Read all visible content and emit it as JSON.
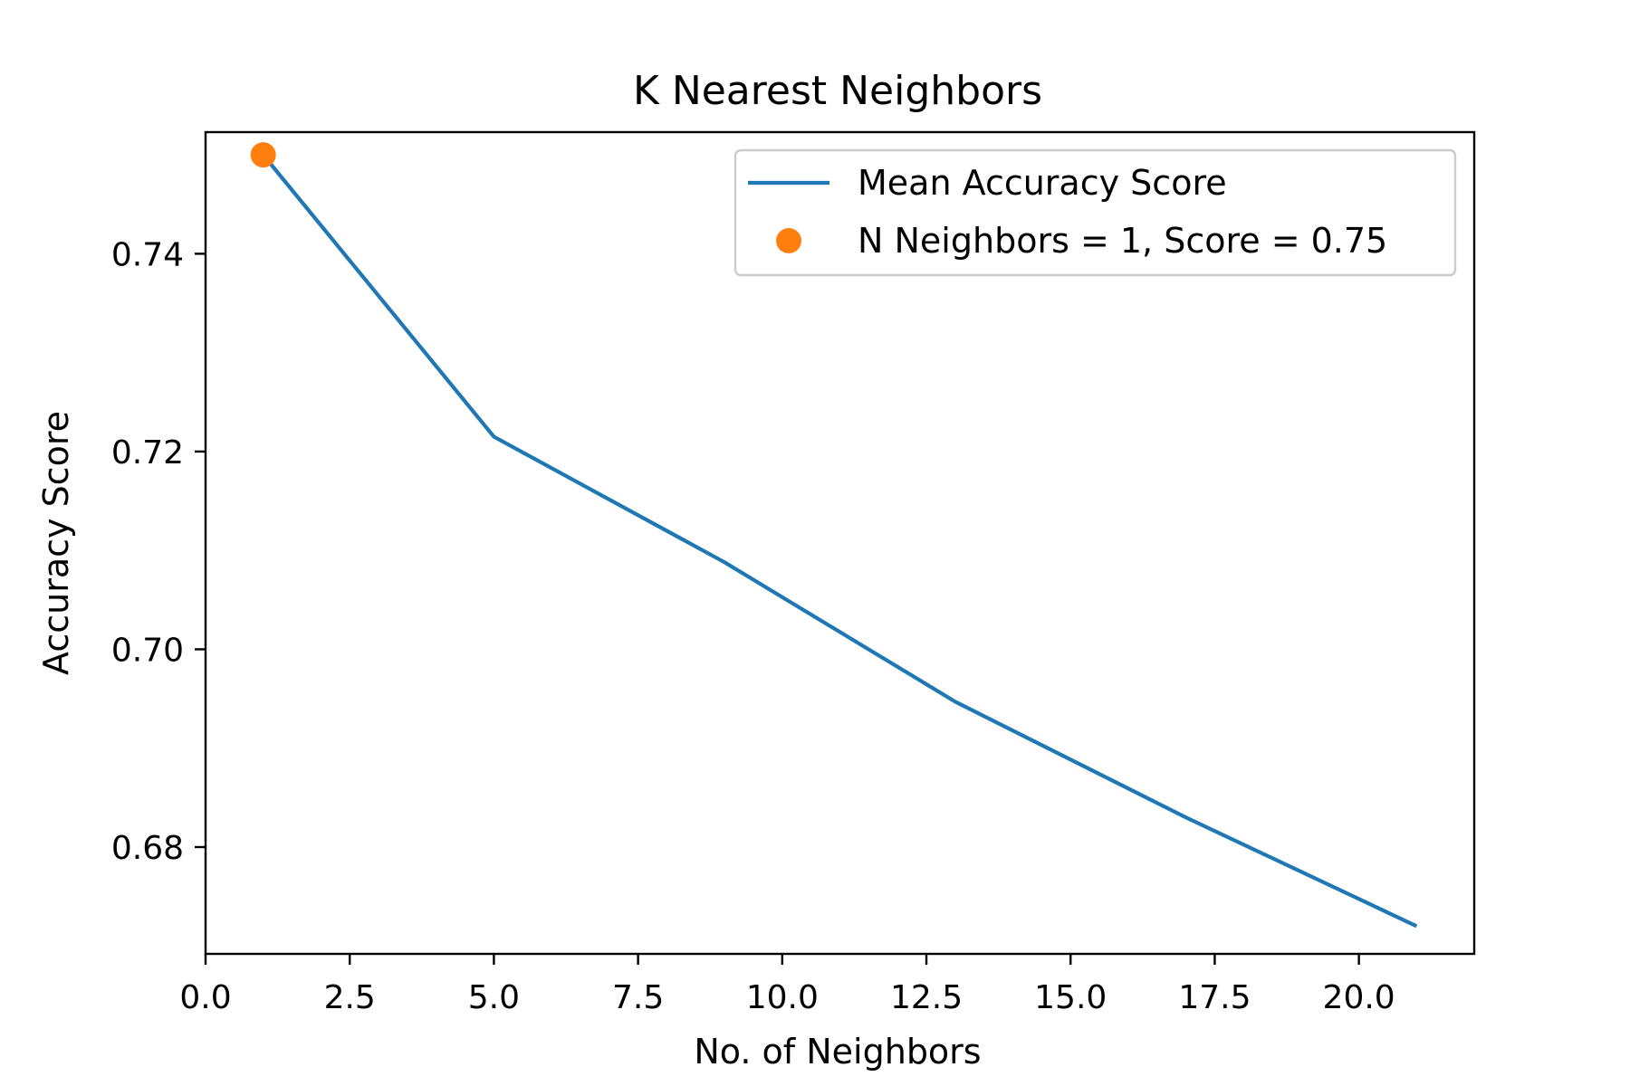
{
  "chart_data": {
    "type": "line",
    "title": "K Nearest Neighbors",
    "xlabel": "No. of Neighbors",
    "ylabel": "Accuracy Score",
    "xlim": [
      0,
      22
    ],
    "ylim": [
      0.6692,
      0.7523
    ],
    "x_ticks": [
      0,
      2.5,
      5,
      7.5,
      10,
      12.5,
      15,
      17.5,
      20
    ],
    "x_tick_labels": [
      "0.0",
      "2.5",
      "5.0",
      "7.5",
      "10.0",
      "12.5",
      "15.0",
      "17.5",
      "20.0"
    ],
    "y_ticks": [
      0.68,
      0.7,
      0.72,
      0.74
    ],
    "y_tick_labels": [
      "0.68",
      "0.70",
      "0.72",
      "0.74"
    ],
    "grid": false,
    "legend_position": "top-right",
    "series": [
      {
        "name": "Mean Accuracy Score",
        "kind": "line",
        "color": "#1f77b4",
        "x": [
          1,
          5,
          9,
          13,
          17,
          21
        ],
        "y": [
          0.75,
          0.7215,
          0.7088,
          0.6947,
          0.683,
          0.672
        ]
      },
      {
        "name": "N Neighbors = 1, Score = 0.75",
        "kind": "marker",
        "color": "#ff7f0e",
        "x": [
          1
        ],
        "y": [
          0.75
        ]
      }
    ]
  }
}
